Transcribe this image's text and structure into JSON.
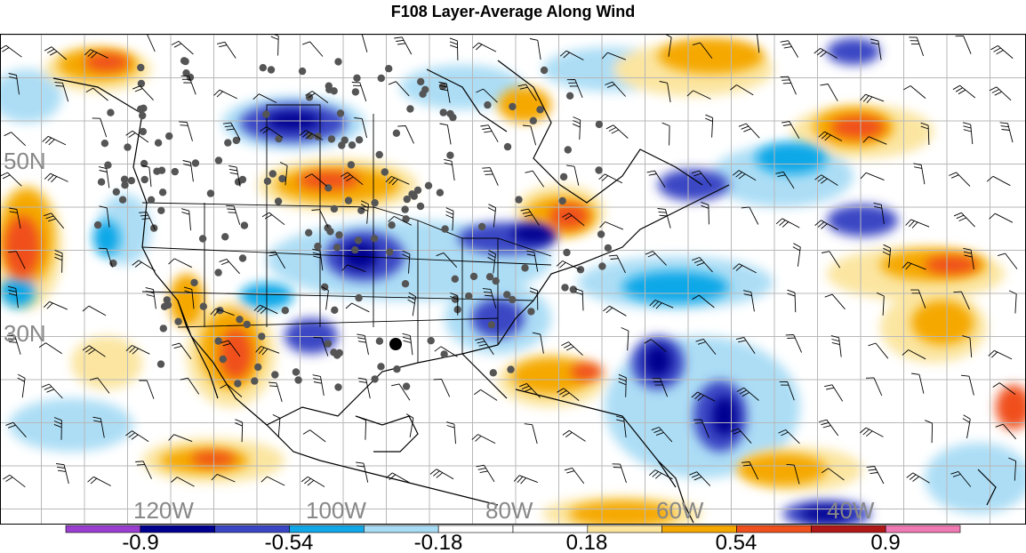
{
  "title": "F108 Layer-Average Along Wind",
  "map": {
    "lat_labels": [
      {
        "text": "50N",
        "lat": 50
      },
      {
        "text": "30N",
        "lat": 30
      }
    ],
    "lon_labels": [
      {
        "text": "120W",
        "lon": -120
      },
      {
        "text": "100W",
        "lon": -100
      },
      {
        "text": "80W",
        "lon": -80
      },
      {
        "text": "60W",
        "lon": -60
      },
      {
        "text": "40W",
        "lon": -40
      }
    ],
    "label_color": "#888888",
    "grid": true
  },
  "colorbar": {
    "colors": [
      "#9a3fd0",
      "#000090",
      "#3a46c4",
      "#10a8e8",
      "#a8dcf5",
      "#ffffff",
      "#ffffff",
      "#fbe49b",
      "#f5a800",
      "#f0501c",
      "#b01818",
      "#f07ab4"
    ],
    "labels": [
      "-0.9",
      "-0.54",
      "-0.18",
      "0.18",
      "0.54",
      "0.9"
    ],
    "label_boundary_index": [
      2,
      4,
      6,
      8,
      10,
      12
    ]
  }
}
